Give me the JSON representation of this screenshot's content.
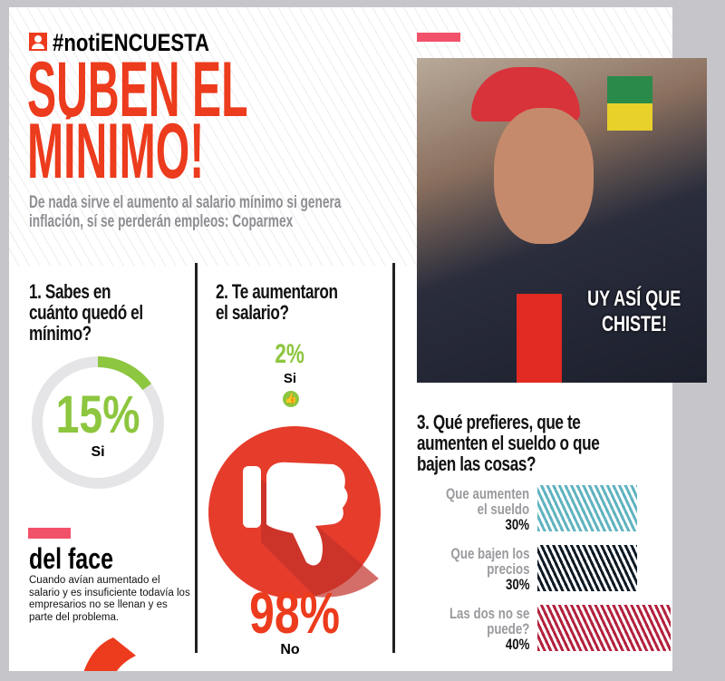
{
  "header": {
    "hashtag": "#notiENCUESTA",
    "icon": "user-icon",
    "title_line1": "SUBEN EL",
    "title_line2": "MÍNIMO!",
    "subtitle_line1": "De nada sirve el aumento al salario mínimo si genera",
    "subtitle_line2": "inflación, sí se perderán empleos: Coparmex"
  },
  "photo": {
    "caption_line1": "UY ASÍ QUE",
    "caption_line2": "CHISTE!"
  },
  "q1": {
    "question_lines": [
      "1. Sabes en",
      "cuánto quedó el",
      "mínimo?"
    ],
    "value": "15%",
    "label": "Si",
    "fraction": 0.15
  },
  "q2": {
    "question_lines": [
      "2. Te aumentaron",
      "el salario?"
    ],
    "yes_value": "2%",
    "yes_label": "Si",
    "no_value": "98%",
    "no_label": "No",
    "icons": [
      "thumbs-up-icon",
      "thumbs-down-icon"
    ]
  },
  "comment": {
    "title": "del face",
    "text": "Cuando avían aumentado el salario y es insuficiente todavía los empresarios no se llenan y es parte del problema."
  },
  "q3": {
    "question_lines": [
      "3. Qué prefieres, que te",
      "aumenten el sueldo o que",
      "bajen las cosas?"
    ],
    "options": [
      {
        "label_lines": [
          "Que aumenten",
          "el sueldo"
        ],
        "value": "30%",
        "percent": 30,
        "color": "#5fb3c0"
      },
      {
        "label_lines": [
          "Que bajen los",
          "precios"
        ],
        "value": "30%",
        "percent": 30,
        "color": "#0e1a24"
      },
      {
        "label_lines": [
          "Las dos no se",
          "puede?"
        ],
        "value": "40%",
        "percent": 40,
        "color": "#b3223e"
      }
    ]
  },
  "colors": {
    "accent_red": "#ec3b1d",
    "green": "#8dc63f",
    "pink": "#f2516a",
    "gray_text": "#8e8e93"
  }
}
